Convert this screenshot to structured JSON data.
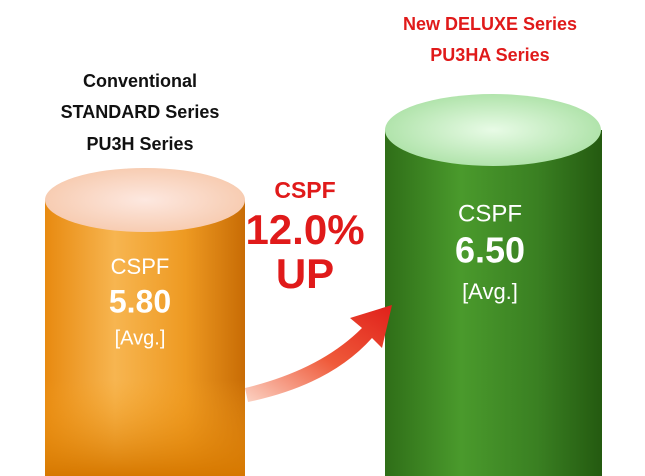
{
  "left": {
    "heading": [
      "Conventional",
      "STANDARD Series",
      "PU3H Series"
    ],
    "metric": "CSPF",
    "value": "5.80",
    "note": "[Avg.]"
  },
  "right": {
    "heading": [
      "New DELUXE Series",
      "PU3HA Series"
    ],
    "metric": "CSPF",
    "value": "6.50",
    "note": "[Avg.]"
  },
  "improvement": {
    "metric": "CSPF",
    "percent": "12.0%",
    "label": "UP"
  }
}
